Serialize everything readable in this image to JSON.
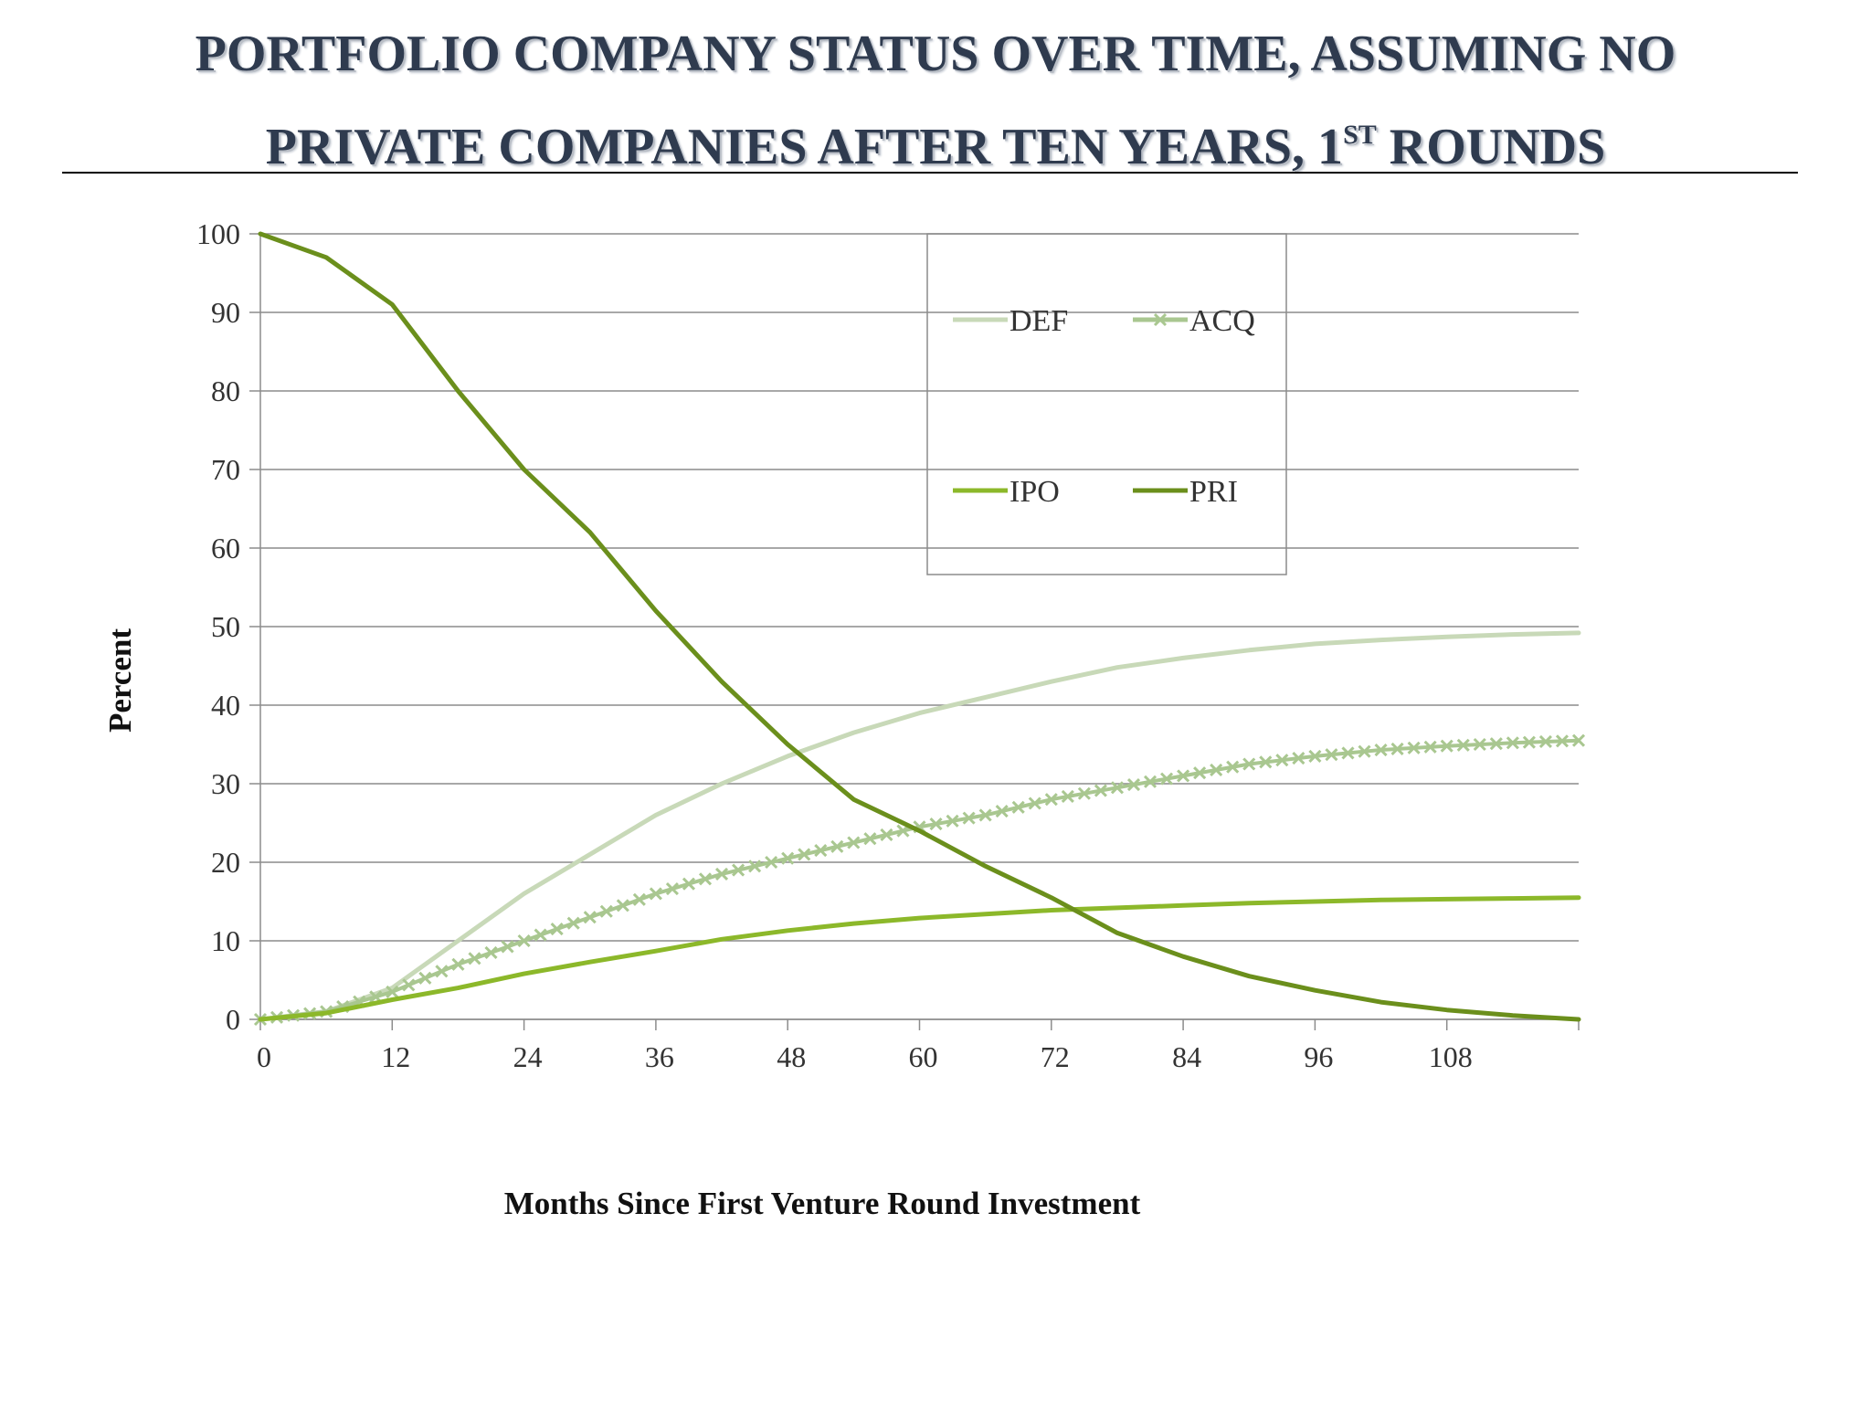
{
  "title": {
    "line1": "PORTFOLIO COMPANY STATUS OVER TIME, ASSUMING NO",
    "line2_main": "PRIVATE COMPANIES AFTER TEN YEARS, 1",
    "line2_sup": "ST",
    "line2_end": " ROUNDS"
  },
  "chart_data": {
    "type": "line",
    "xlabel": "Months Since First Venture Round Investment",
    "ylabel": "Percent",
    "xlim": [
      0,
      120
    ],
    "ylim": [
      0,
      100
    ],
    "x_ticks": [
      0,
      12,
      24,
      36,
      48,
      60,
      72,
      84,
      96,
      108
    ],
    "y_ticks": [
      0,
      10,
      20,
      30,
      40,
      50,
      60,
      70,
      80,
      90,
      100
    ],
    "grid": "horizontal",
    "legend_position": "top-center",
    "x": [
      0,
      6,
      12,
      18,
      24,
      30,
      36,
      42,
      48,
      54,
      60,
      66,
      72,
      78,
      84,
      90,
      96,
      102,
      108,
      114,
      120
    ],
    "series": [
      {
        "name": "DEF",
        "color": "#c8d9b8",
        "marker": "none",
        "values": [
          0,
          1,
          4,
          10,
          16,
          21,
          26,
          30,
          33.5,
          36.5,
          39,
          41,
          43,
          44.8,
          46,
          47,
          47.8,
          48.3,
          48.7,
          49,
          49.2
        ]
      },
      {
        "name": "ACQ",
        "color": "#a9c790",
        "marker": "x",
        "values": [
          0,
          1,
          3.5,
          7,
          10,
          13,
          16,
          18.5,
          20.5,
          22.5,
          24.5,
          26,
          28,
          29.5,
          31,
          32.5,
          33.5,
          34.3,
          34.8,
          35.2,
          35.5
        ]
      },
      {
        "name": "IPO",
        "color": "#8cb82a",
        "marker": "none",
        "values": [
          0,
          0.8,
          2.5,
          4,
          5.8,
          7.3,
          8.7,
          10.2,
          11.3,
          12.2,
          12.9,
          13.4,
          13.9,
          14.2,
          14.5,
          14.8,
          15,
          15.2,
          15.3,
          15.4,
          15.5
        ]
      },
      {
        "name": "PRI",
        "color": "#6b8f1c",
        "marker": "none",
        "values": [
          100,
          97,
          91,
          80,
          70,
          62,
          52,
          43,
          35,
          28,
          24,
          19.5,
          15.5,
          11,
          8,
          5.5,
          3.7,
          2.2,
          1.2,
          0.5,
          0
        ]
      }
    ]
  }
}
